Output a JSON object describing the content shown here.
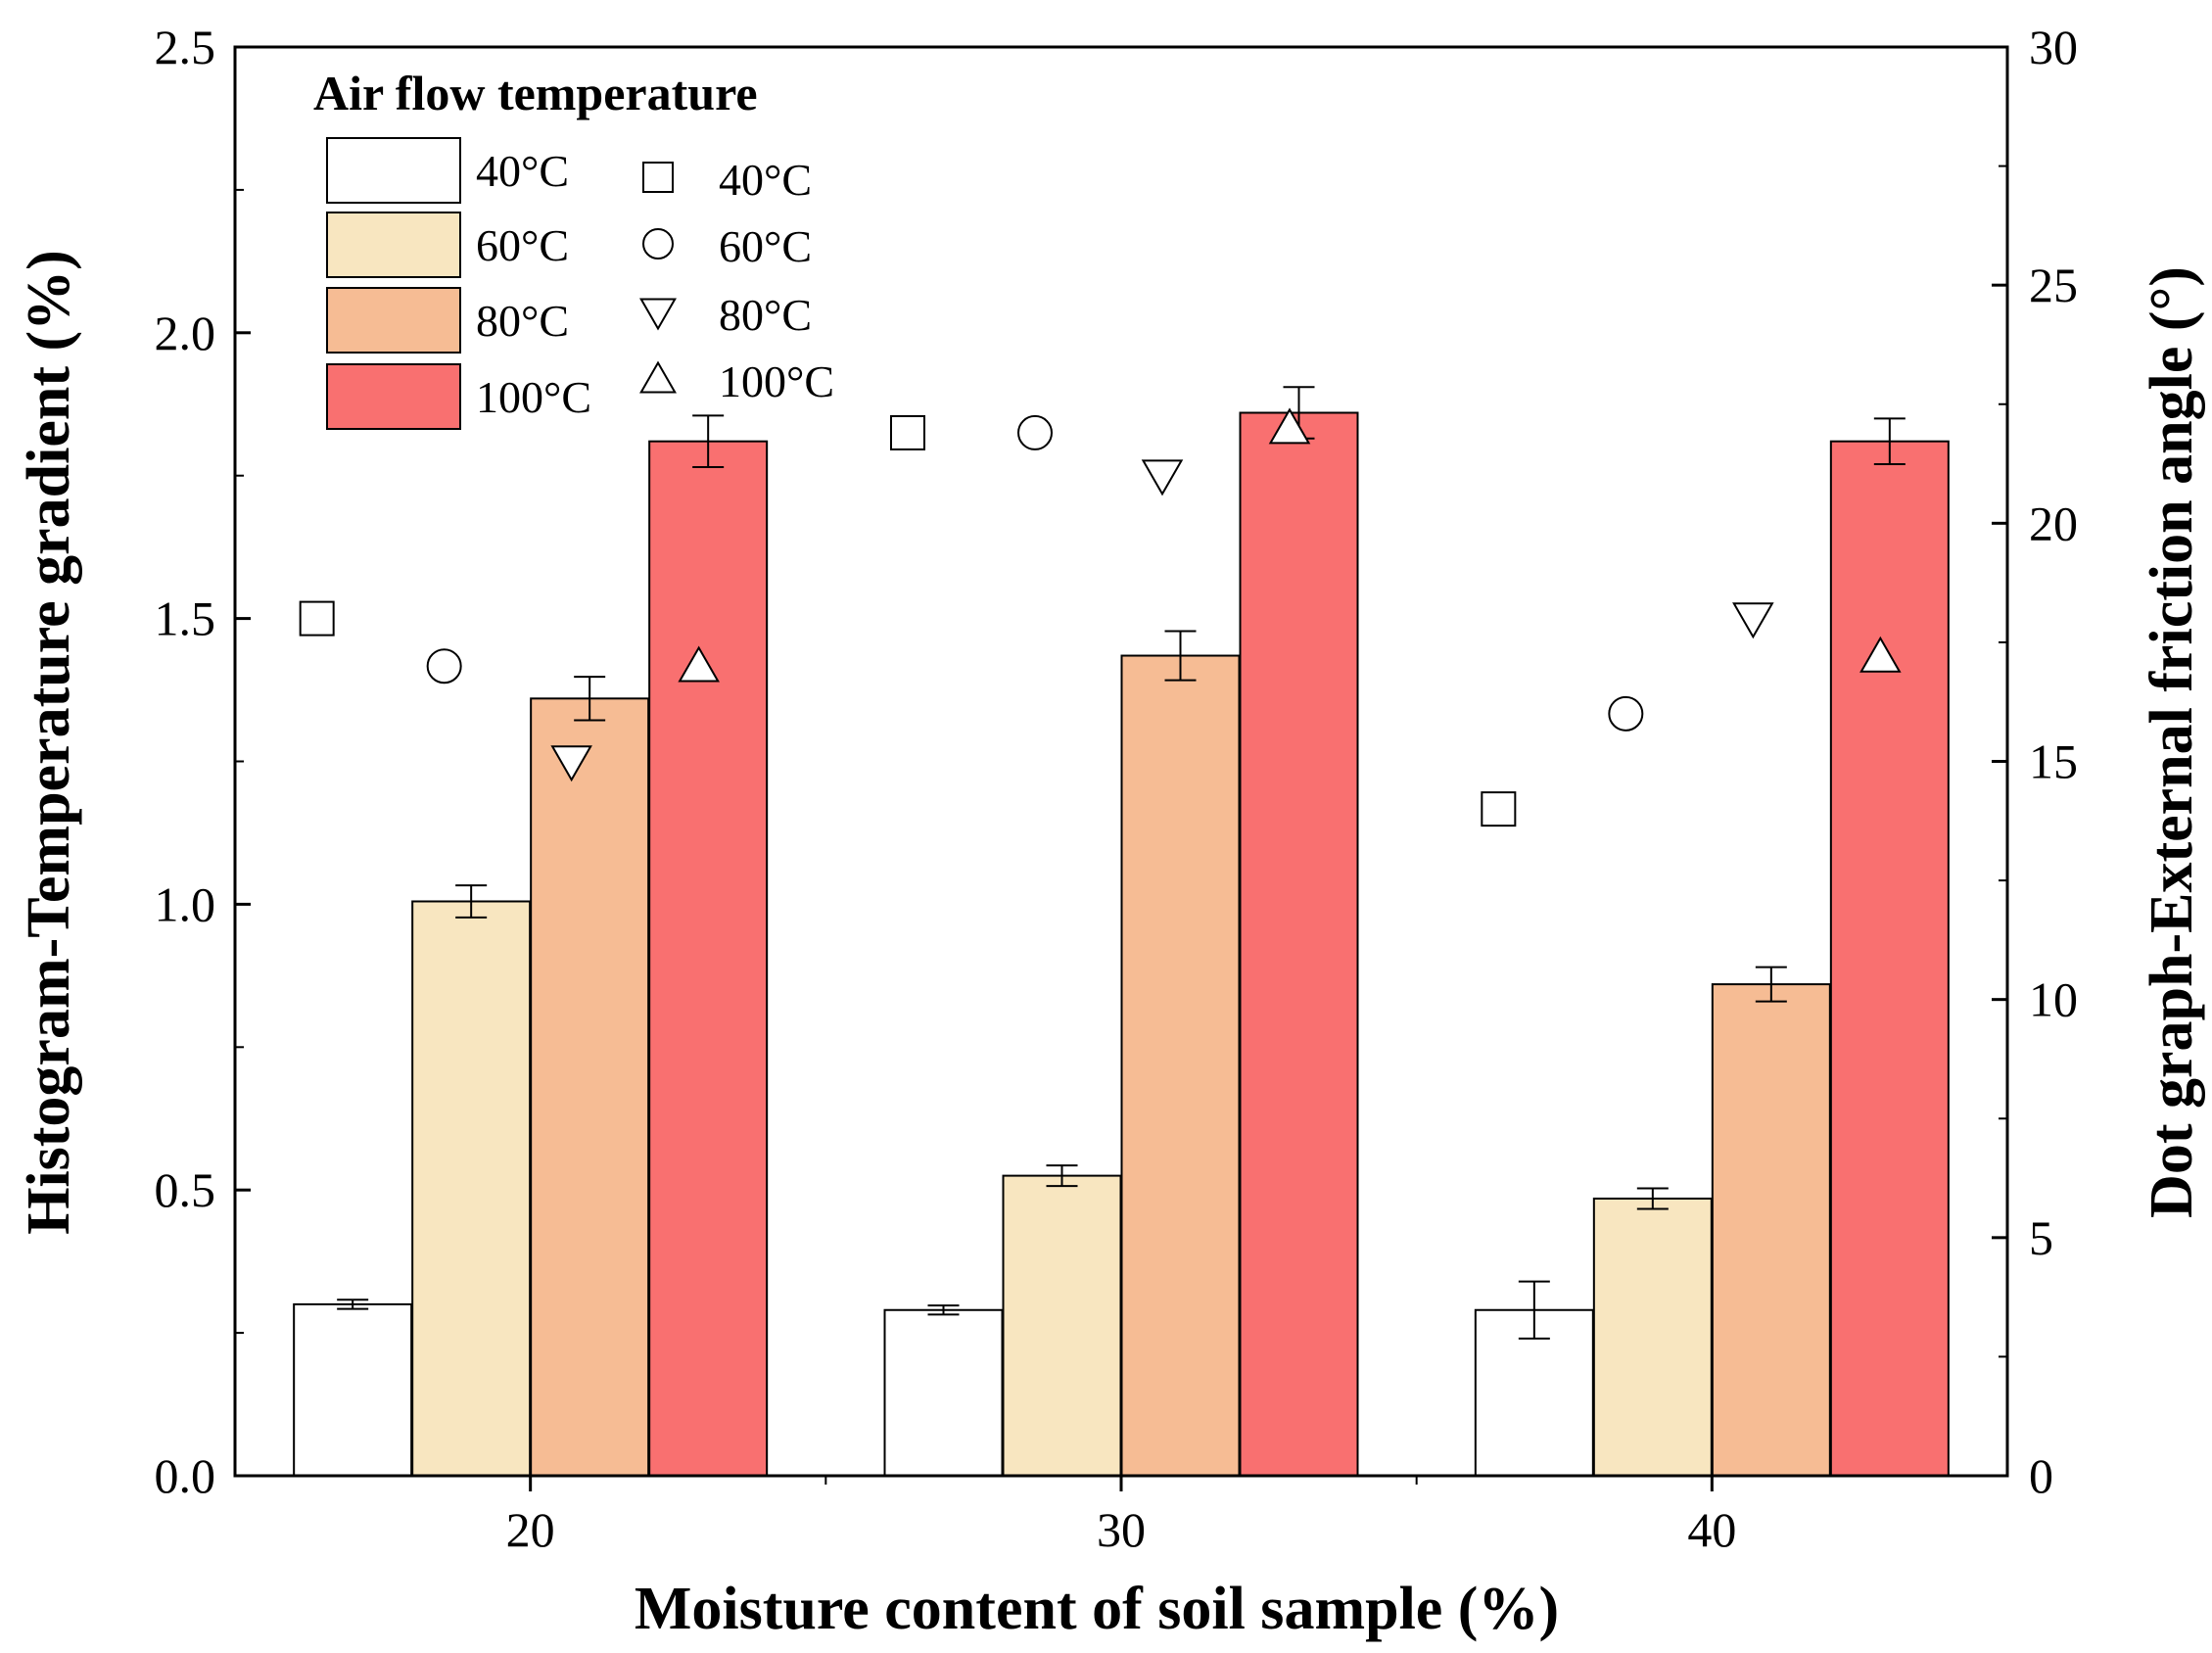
{
  "chart_data": {
    "type": "bar",
    "title": "",
    "xlabel": "Moisture content of soil sample (%)",
    "ylabel": "Histogram-Temperature gradient (%)",
    "y2label": "Dot graph-External friction angle (°)",
    "categories": [
      "20",
      "30",
      "40"
    ],
    "ylim": [
      0,
      2.5
    ],
    "y2lim": [
      0,
      30
    ],
    "yticks": [
      "0.0",
      "0.5",
      "1.0",
      "1.5",
      "2.0",
      "2.5"
    ],
    "y2ticks": [
      "0",
      "5",
      "10",
      "15",
      "20",
      "25",
      "30"
    ],
    "legend_title": "Air flow temperature",
    "legend_position": "top-left",
    "bar_series": [
      {
        "name": "40°C",
        "color": "#ffffff",
        "values": [
          0.3,
          0.29,
          0.29
        ],
        "errors": [
          0.008,
          0.008,
          0.05
        ]
      },
      {
        "name": "60°C",
        "color": "#f8e6c0",
        "values": [
          1.005,
          0.525,
          0.485
        ],
        "errors": [
          0.028,
          0.018,
          0.018
        ]
      },
      {
        "name": "80°C",
        "color": "#f6bc94",
        "values": [
          1.36,
          1.435,
          0.86
        ],
        "errors": [
          0.038,
          0.043,
          0.03
        ]
      },
      {
        "name": "100°C",
        "color": "#f97070",
        "values": [
          1.81,
          1.86,
          1.81
        ],
        "errors": [
          0.045,
          0.045,
          0.04
        ]
      }
    ],
    "scatter_series": [
      {
        "name": "40°C",
        "marker": "square",
        "values": [
          18.0,
          21.9,
          14.0
        ]
      },
      {
        "name": "60°C",
        "marker": "circle",
        "values": [
          17.0,
          21.9,
          16.0
        ]
      },
      {
        "name": "80°C",
        "marker": "triangle-down",
        "values": [
          15.0,
          21.0,
          18.0
        ]
      },
      {
        "name": "100°C",
        "marker": "triangle-up",
        "values": [
          17.0,
          22.0,
          17.2
        ]
      }
    ]
  }
}
